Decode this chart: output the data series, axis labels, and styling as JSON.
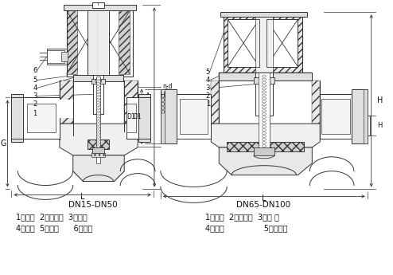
{
  "bg_color": "#ffffff",
  "lc": "#333333",
  "left_label": "DN15-DN50",
  "left_parts1": "1、阀体  2、阀塞组  3、弹簧",
  "left_parts2": "4、阀盖  5、铁芯      6、线圈",
  "right_label": "DN65-DN100",
  "right_parts1": "1、阀体  2、阀塞组  3、弹 簧",
  "right_parts2": "4、阀盖                5、电磁铁"
}
